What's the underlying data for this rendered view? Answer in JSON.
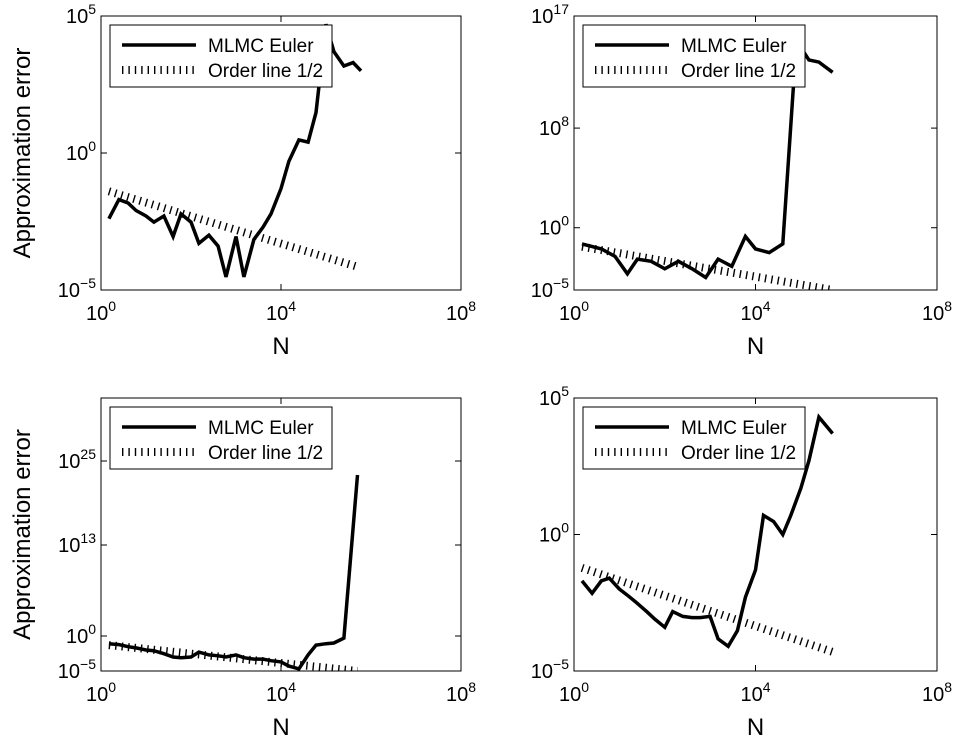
{
  "chart_data": [
    {
      "type": "line",
      "xscale": "log",
      "yscale": "log",
      "xlim": [
        1,
        100000000
      ],
      "ylim": [
        1e-05,
        100000
      ],
      "xticks": [
        {
          "base": "10",
          "exp": "0",
          "value": 1
        },
        {
          "base": "10",
          "exp": "4",
          "value": 10000
        },
        {
          "base": "10",
          "exp": "8",
          "value": 100000000
        }
      ],
      "yticks": [
        {
          "base": "10",
          "exp": "−5",
          "value": 1e-05
        },
        {
          "base": "10",
          "exp": "0",
          "value": 1
        },
        {
          "base": "10",
          "exp": "5",
          "value": 100000
        }
      ],
      "xlabel": "N",
      "ylabel": "Approximation error",
      "legend": {
        "position": "top-left",
        "entries": [
          "MLMC Euler",
          "Order line 1/2"
        ]
      },
      "series": [
        {
          "name": "MLMC Euler",
          "style": "solid",
          "x": [
            1.5,
            2.5,
            4,
            6,
            10,
            15,
            25,
            40,
            60,
            100,
            150,
            250,
            400,
            600,
            1000,
            1500,
            2500,
            4000,
            6000,
            10000,
            15000,
            25000,
            40000,
            60000,
            100000,
            150000,
            250000,
            400000,
            600000
          ],
          "y": [
            0.004,
            0.02,
            0.015,
            0.008,
            0.005,
            0.003,
            0.005,
            0.0009,
            0.006,
            0.003,
            0.0005,
            0.001,
            0.0004,
            3e-05,
            0.0009,
            3e-05,
            0.0007,
            0.002,
            0.006,
            0.05,
            0.5,
            3,
            2.5,
            30,
            50000,
            5000,
            1500,
            2000,
            1000
          ]
        },
        {
          "name": "Order line 1/2",
          "style": "dotted",
          "x": [
            1.5,
            500000
          ],
          "y": [
            0.04,
            7e-05
          ]
        }
      ]
    },
    {
      "type": "line",
      "xscale": "log",
      "yscale": "log",
      "xlim": [
        1,
        100000000
      ],
      "ylim": [
        1e-05,
        100000000000000000
      ],
      "xticks": [
        {
          "base": "10",
          "exp": "0",
          "value": 1
        },
        {
          "base": "10",
          "exp": "4",
          "value": 10000
        },
        {
          "base": "10",
          "exp": "8",
          "value": 100000000
        }
      ],
      "yticks": [
        {
          "base": "10",
          "exp": "−5",
          "value": 1e-05
        },
        {
          "base": "10",
          "exp": "0",
          "value": 1
        },
        {
          "base": "10",
          "exp": "8",
          "value": 100000000
        },
        {
          "base": "10",
          "exp": "17",
          "value": 100000000000000000
        }
      ],
      "xlabel": "N",
      "ylabel": "",
      "legend": {
        "position": "top-left",
        "entries": [
          "MLMC Euler",
          "Order line 1/2"
        ]
      },
      "series": [
        {
          "name": "MLMC Euler",
          "style": "solid",
          "x": [
            1.5,
            4,
            8,
            15,
            25,
            50,
            100,
            200,
            400,
            800,
            1500,
            3000,
            6000,
            10000,
            20000,
            40000,
            80000,
            150000,
            250000,
            500000
          ],
          "y": [
            0.05,
            0.02,
            0.005,
            0.0002,
            0.003,
            0.002,
            0.0005,
            0.002,
            0.0005,
            0.0001,
            0.003,
            0.0008,
            0.2,
            0.02,
            0.01,
            0.05,
            1000000000000000,
            30000000000000,
            20000000000000,
            3000000000000
          ]
        },
        {
          "name": "Order line 1/2",
          "style": "dotted",
          "x": [
            1.5,
            500000
          ],
          "y": [
            0.03,
            1e-05
          ]
        }
      ]
    },
    {
      "type": "line",
      "xscale": "log",
      "yscale": "log",
      "xlim": [
        1,
        100000000
      ],
      "ylim": [
        1e-05,
        1e+34
      ],
      "xticks": [
        {
          "base": "10",
          "exp": "0",
          "value": 1
        },
        {
          "base": "10",
          "exp": "4",
          "value": 10000
        },
        {
          "base": "10",
          "exp": "8",
          "value": 100000000
        }
      ],
      "yticks": [
        {
          "base": "10",
          "exp": "−5",
          "value": 1e-05
        },
        {
          "base": "10",
          "exp": "0",
          "value": 1
        },
        {
          "base": "10",
          "exp": "13",
          "value": 10000000000000
        },
        {
          "base": "10",
          "exp": "25",
          "value": 1e+25
        }
      ],
      "xlabel": "N",
      "ylabel": "Approximation error",
      "legend": {
        "position": "top-left",
        "entries": [
          "MLMC Euler",
          "Order line 1/2"
        ]
      },
      "series": [
        {
          "name": "MLMC Euler",
          "style": "solid",
          "x": [
            1.5,
            2.5,
            4,
            6,
            10,
            15,
            25,
            40,
            60,
            100,
            150,
            250,
            400,
            600,
            1000,
            1500,
            2500,
            4000,
            6000,
            10000,
            15000,
            25000,
            40000,
            60000,
            100000,
            150000,
            250000,
            500000
          ],
          "y": [
            0.08,
            0.06,
            0.03,
            0.02,
            0.01,
            0.008,
            0.003,
            0.001,
            0.0008,
            0.001,
            0.005,
            0.002,
            0.0015,
            0.001,
            0.002,
            0.0008,
            0.0005,
            0.0005,
            0.0003,
            0.0002,
            5e-05,
            2e-05,
            0.002,
            0.05,
            0.08,
            0.1,
            0.5,
            1e+23
          ]
        },
        {
          "name": "Order line 1/2",
          "style": "dotted",
          "x": [
            1.5,
            500000
          ],
          "y": [
            0.05,
            1e-05
          ]
        }
      ]
    },
    {
      "type": "line",
      "xscale": "log",
      "yscale": "log",
      "xlim": [
        1,
        100000000
      ],
      "ylim": [
        1e-05,
        100000
      ],
      "xticks": [
        {
          "base": "10",
          "exp": "0",
          "value": 1
        },
        {
          "base": "10",
          "exp": "4",
          "value": 10000
        },
        {
          "base": "10",
          "exp": "8",
          "value": 100000000
        }
      ],
      "yticks": [
        {
          "base": "10",
          "exp": "−5",
          "value": 1e-05
        },
        {
          "base": "10",
          "exp": "0",
          "value": 1
        },
        {
          "base": "10",
          "exp": "5",
          "value": 100000
        }
      ],
      "xlabel": "N",
      "ylabel": "",
      "legend": {
        "position": "top-left",
        "entries": [
          "MLMC Euler",
          "Order line 1/2"
        ]
      },
      "series": [
        {
          "name": "MLMC Euler",
          "style": "solid",
          "x": [
            1.5,
            2.5,
            4,
            6,
            10,
            15,
            25,
            40,
            60,
            100,
            150,
            250,
            400,
            600,
            1000,
            1500,
            2500,
            4000,
            6000,
            10000,
            15000,
            25000,
            40000,
            60000,
            100000,
            150000,
            250000,
            500000
          ],
          "y": [
            0.02,
            0.007,
            0.02,
            0.025,
            0.01,
            0.006,
            0.003,
            0.0015,
            0.0008,
            0.0004,
            0.0015,
            0.001,
            0.0009,
            0.0009,
            0.001,
            0.00015,
            8e-05,
            0.0003,
            0.005,
            0.05,
            5,
            3,
            1,
            5,
            50,
            500,
            20000,
            5000
          ]
        },
        {
          "name": "Order line 1/2",
          "style": "dotted",
          "x": [
            1.5,
            500000
          ],
          "y": [
            0.06,
            5e-05
          ]
        }
      ]
    }
  ]
}
